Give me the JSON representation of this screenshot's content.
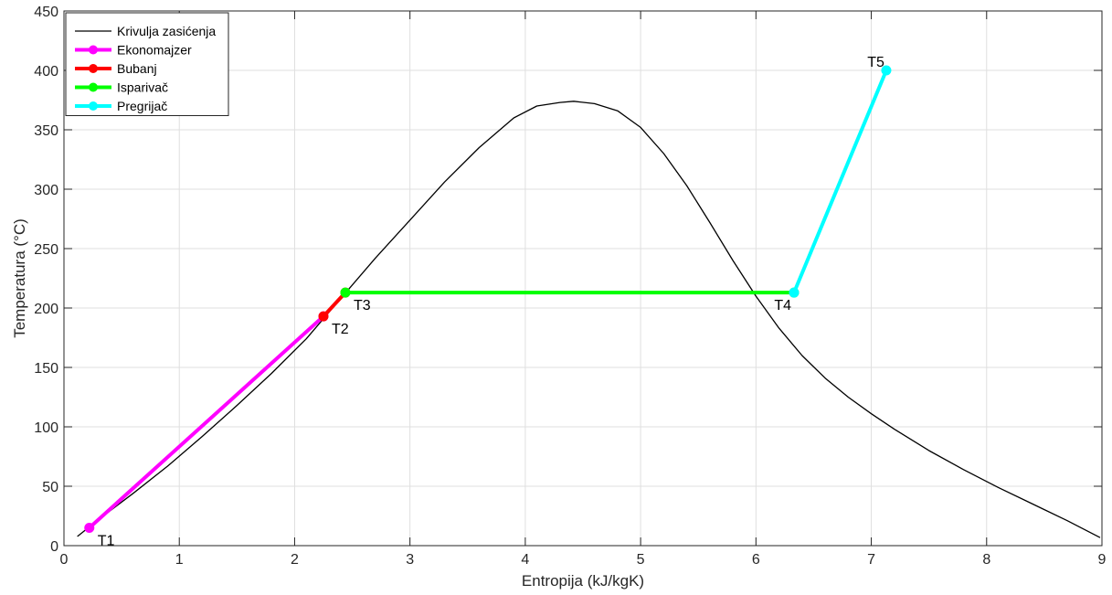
{
  "chart_data": {
    "type": "line",
    "xlabel": "Entropija (kJ/kgK)",
    "ylabel": "Temperatura (°C)",
    "xlim": [
      0,
      9
    ],
    "ylim": [
      0,
      450
    ],
    "xticks": [
      0,
      1,
      2,
      3,
      4,
      5,
      6,
      7,
      8,
      9
    ],
    "yticks": [
      0,
      50,
      100,
      150,
      200,
      250,
      300,
      350,
      400,
      450
    ],
    "grid": true,
    "legend_position": "top-left",
    "series": [
      {
        "name": "Krivulja zasićenja",
        "color": "#000000",
        "markers": false,
        "x": [
          0.12,
          0.3,
          0.6,
          0.9,
          1.2,
          1.5,
          1.8,
          2.1,
          2.4,
          2.7,
          3.0,
          3.3,
          3.6,
          3.9,
          4.1,
          4.3,
          4.42,
          4.6,
          4.8,
          5.0,
          5.2,
          5.4,
          5.6,
          5.8,
          6.0,
          6.2,
          6.4,
          6.6,
          6.8,
          7.0,
          7.2,
          7.5,
          7.8,
          8.1,
          8.4,
          8.7,
          8.98
        ],
        "y": [
          8,
          22,
          44,
          67,
          92,
          118,
          145,
          174,
          208,
          242,
          274,
          306,
          335,
          360,
          370,
          373,
          374,
          372,
          366,
          352,
          330,
          303,
          272,
          240,
          210,
          183,
          160,
          141,
          125,
          111,
          98,
          80,
          64,
          49,
          35,
          21,
          7
        ]
      },
      {
        "name": "Ekonomajzer",
        "color": "#ff00ff",
        "markers": true,
        "x": [
          0.22,
          2.25
        ],
        "y": [
          15,
          193
        ]
      },
      {
        "name": "Bubanj",
        "color": "#ff0000",
        "markers": true,
        "x": [
          2.25,
          2.44
        ],
        "y": [
          193,
          213
        ]
      },
      {
        "name": "Isparivač",
        "color": "#00ff00",
        "markers": true,
        "x": [
          2.44,
          6.33
        ],
        "y": [
          213,
          213
        ]
      },
      {
        "name": "Pregrijač",
        "color": "#00ffff",
        "markers": true,
        "x": [
          6.33,
          7.13
        ],
        "y": [
          213,
          400
        ]
      }
    ],
    "point_labels": [
      {
        "text": "T1",
        "x": 0.22,
        "y": 15,
        "anchor": "below-right"
      },
      {
        "text": "T2",
        "x": 2.25,
        "y": 193,
        "anchor": "below-right"
      },
      {
        "text": "T3",
        "x": 2.44,
        "y": 213,
        "anchor": "below-right"
      },
      {
        "text": "T4",
        "x": 6.33,
        "y": 213,
        "anchor": "below-left"
      },
      {
        "text": "T5",
        "x": 7.13,
        "y": 400,
        "anchor": "above-left"
      }
    ]
  }
}
